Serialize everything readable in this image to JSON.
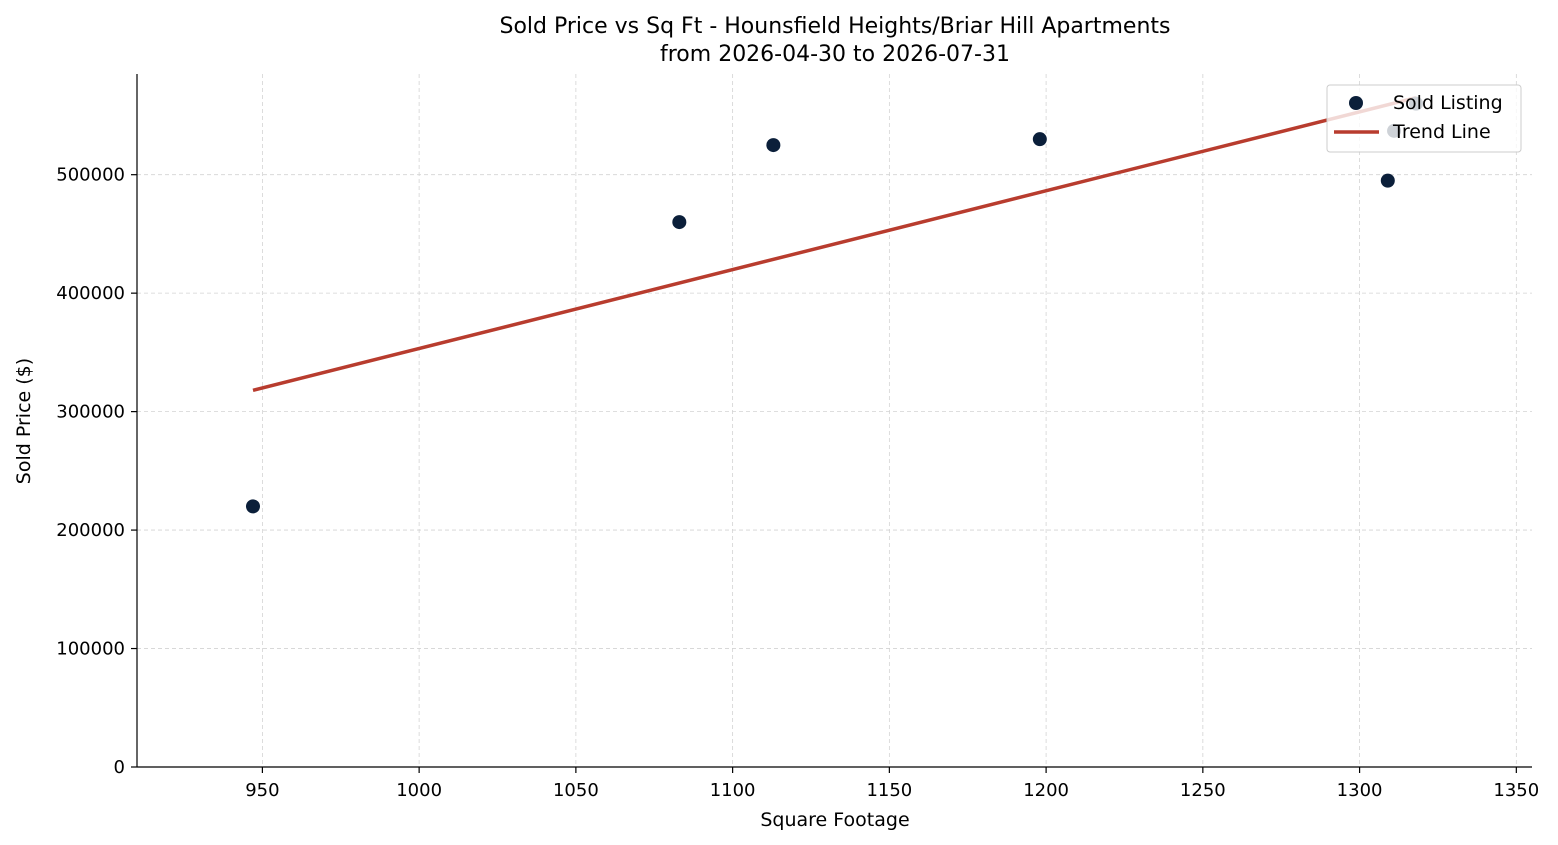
{
  "chart_data": {
    "type": "scatter",
    "title": "Sold Price vs Sq Ft - Hounsfield Heights/Briar Hill Apartments",
    "subtitle": "from 2026-04-30 to 2026-07-31",
    "xlabel": "Square Footage",
    "ylabel": "Sold Price ($)",
    "xlim": [
      910,
      1355
    ],
    "ylim": [
      0,
      585000
    ],
    "xticks": [
      950,
      1000,
      1050,
      1100,
      1150,
      1200,
      1250,
      1300,
      1350
    ],
    "yticks": [
      0,
      100000,
      200000,
      300000,
      400000,
      500000
    ],
    "grid": true,
    "legend_position": "top-right",
    "colors": {
      "points": "#0b1f3a",
      "trend": "#b83c2e",
      "grid": "#d3d3d3"
    },
    "series": [
      {
        "name": "Sold Listing",
        "kind": "scatter",
        "points": [
          {
            "x": 947,
            "y": 220000
          },
          {
            "x": 1083,
            "y": 460000
          },
          {
            "x": 1113,
            "y": 525000
          },
          {
            "x": 1198,
            "y": 530000
          },
          {
            "x": 1309,
            "y": 495000
          },
          {
            "x": 1311,
            "y": 537000
          },
          {
            "x": 1318,
            "y": 560000
          }
        ]
      },
      {
        "name": "Trend Line",
        "kind": "line",
        "points": [
          {
            "x": 947,
            "y": 318000
          },
          {
            "x": 1318,
            "y": 565000
          }
        ]
      }
    ]
  }
}
